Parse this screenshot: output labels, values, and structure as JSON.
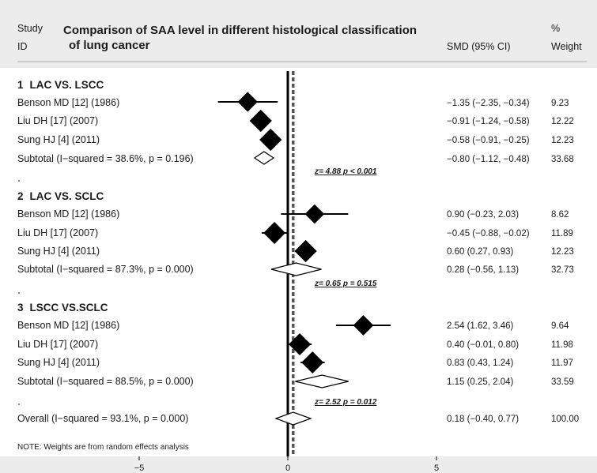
{
  "chart_data": {
    "type": "forest",
    "title_line1": "Comparison of SAA level in different histological classification",
    "title_line2": "of lung cancer",
    "header": {
      "study_line1": "Study",
      "study_line2": "ID",
      "effect": "SMD (95% CI)",
      "weight_line1": "%",
      "weight_line2": "Weight"
    },
    "groups": [
      {
        "number": "1",
        "name": "LAC VS. LSCC",
        "studies": [
          {
            "label": "Benson MD [12] (1986)",
            "smd": -1.35,
            "lo": -2.35,
            "hi": -0.34,
            "ci_text": "−1.35 (−2.35, −0.34)",
            "weight": "9.23"
          },
          {
            "label": "Liu DH [17] (2007)",
            "smd": -0.91,
            "lo": -1.24,
            "hi": -0.58,
            "ci_text": "−0.91 (−1.24, −0.58)",
            "weight": "12.22"
          },
          {
            "label": "Sung HJ [4] (2011)",
            "smd": -0.58,
            "lo": -0.91,
            "hi": -0.25,
            "ci_text": "−0.58 (−0.91, −0.25)",
            "weight": "12.23"
          }
        ],
        "subtotal": {
          "label": "Subtotal  (I−squared = 38.6%, p = 0.196)",
          "smd": -0.8,
          "lo": -1.12,
          "hi": -0.48,
          "ci_text": "−0.80 (−1.12, −0.48)",
          "weight": "33.68"
        },
        "z_text": "z=  4.88    p < 0.001"
      },
      {
        "number": "2",
        "name": "LAC VS. SCLC",
        "studies": [
          {
            "label": "Benson MD [12] (1986)",
            "smd": 0.9,
            "lo": -0.23,
            "hi": 2.03,
            "ci_text": "0.90 (−0.23, 2.03)",
            "weight": "8.62"
          },
          {
            "label": "Liu DH [17] (2007)",
            "smd": -0.45,
            "lo": -0.88,
            "hi": -0.02,
            "ci_text": "−0.45 (−0.88, −0.02)",
            "weight": "11.89"
          },
          {
            "label": "Sung HJ [4] (2011)",
            "smd": 0.6,
            "lo": 0.27,
            "hi": 0.93,
            "ci_text": "0.60 (0.27, 0.93)",
            "weight": "12.23"
          }
        ],
        "subtotal": {
          "label": "Subtotal  (I−squared = 87.3%, p = 0.000)",
          "smd": 0.28,
          "lo": -0.56,
          "hi": 1.13,
          "ci_text": "0.28 (−0.56, 1.13)",
          "weight": "32.73"
        },
        "z_text": "z=  0.65    p = 0.515"
      },
      {
        "number": "3",
        "name": "LSCC VS.SCLC",
        "studies": [
          {
            "label": "Benson MD [12] (1986)",
            "smd": 2.54,
            "lo": 1.62,
            "hi": 3.46,
            "ci_text": "2.54 (1.62, 3.46)",
            "weight": "9.64"
          },
          {
            "label": "Liu DH [17] (2007)",
            "smd": 0.4,
            "lo": -0.01,
            "hi": 0.8,
            "ci_text": "0.40 (−0.01, 0.80)",
            "weight": "11.98"
          },
          {
            "label": "Sung HJ [4] (2011)",
            "smd": 0.83,
            "lo": 0.43,
            "hi": 1.24,
            "ci_text": "0.83 (0.43, 1.24)",
            "weight": "11.97"
          }
        ],
        "subtotal": {
          "label": "Subtotal  (I−squared = 88.5%, p = 0.000)",
          "smd": 1.15,
          "lo": 0.25,
          "hi": 2.04,
          "ci_text": "1.15 (0.25, 2.04)",
          "weight": "33.59"
        },
        "z_text": "z=  2.52    p = 0.012"
      }
    ],
    "overall": {
      "label": "Overall  (I−squared = 93.1%, p = 0.000)",
      "smd": 0.18,
      "lo": -0.4,
      "hi": 0.77,
      "ci_text": "0.18 (−0.40, 0.77)",
      "weight": "100.00"
    },
    "note": "NOTE: Weights are from random effects analysis",
    "x_ticks": [
      {
        "value": -5,
        "label": "−5"
      },
      {
        "value": 0,
        "label": "0"
      },
      {
        "value": 5,
        "label": "5"
      }
    ],
    "x_range": [
      -9.6,
      9.6
    ],
    "null_line": 0,
    "overall_line": 0.18,
    "colors": {
      "marker": "#000000",
      "background": "#ffffff",
      "header_bar": "#ececec"
    }
  }
}
